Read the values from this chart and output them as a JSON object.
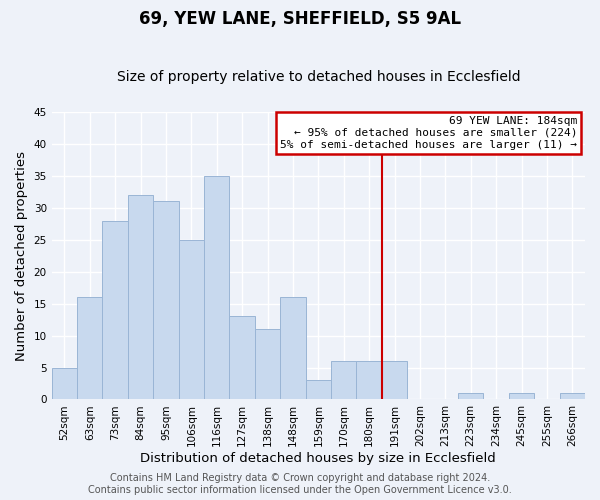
{
  "title": "69, YEW LANE, SHEFFIELD, S5 9AL",
  "subtitle": "Size of property relative to detached houses in Ecclesfield",
  "xlabel": "Distribution of detached houses by size in Ecclesfield",
  "ylabel": "Number of detached properties",
  "bin_labels": [
    "52sqm",
    "63sqm",
    "73sqm",
    "84sqm",
    "95sqm",
    "106sqm",
    "116sqm",
    "127sqm",
    "138sqm",
    "148sqm",
    "159sqm",
    "170sqm",
    "180sqm",
    "191sqm",
    "202sqm",
    "213sqm",
    "223sqm",
    "234sqm",
    "245sqm",
    "255sqm",
    "266sqm"
  ],
  "bar_values": [
    5,
    16,
    28,
    32,
    31,
    25,
    35,
    13,
    11,
    16,
    3,
    6,
    6,
    6,
    0,
    0,
    1,
    0,
    1,
    0,
    1
  ],
  "bar_color": "#c8d9ee",
  "bar_edge_color": "#9ab5d5",
  "vline_x": 12.5,
  "vline_color": "#cc0000",
  "annotation_title": "69 YEW LANE: 184sqm",
  "annotation_line1": "← 95% of detached houses are smaller (224)",
  "annotation_line2": "5% of semi-detached houses are larger (11) →",
  "ylim": [
    0,
    45
  ],
  "yticks": [
    0,
    5,
    10,
    15,
    20,
    25,
    30,
    35,
    40,
    45
  ],
  "footer_line1": "Contains HM Land Registry data © Crown copyright and database right 2024.",
  "footer_line2": "Contains public sector information licensed under the Open Government Licence v3.0.",
  "background_color": "#eef2f9",
  "grid_color": "#ffffff",
  "title_fontsize": 12,
  "subtitle_fontsize": 10,
  "axis_label_fontsize": 9.5,
  "tick_fontsize": 7.5,
  "footer_fontsize": 7.0
}
